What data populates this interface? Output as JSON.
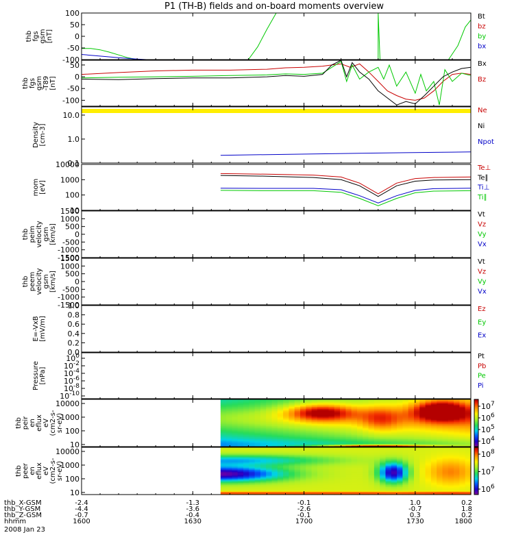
{
  "title": "P1 (TH-B) fields and on-board moments overview",
  "colors": {
    "black": "#000000",
    "red": "#c80000",
    "green": "#00c800",
    "blue": "#0000c8",
    "yellow": "#ffee00"
  },
  "chart_data": [
    {
      "type": "line",
      "ylabel": [
        "thb",
        "fgs",
        "gsm",
        "[nT]"
      ],
      "ylim": [
        -100,
        100
      ],
      "yticks": [
        "100",
        "50",
        "0",
        "-50",
        "-100"
      ],
      "legend": [
        {
          "label": "Bt",
          "color": "black"
        },
        {
          "label": "bz",
          "color": "red"
        },
        {
          "label": "by",
          "color": "green"
        },
        {
          "label": "bx",
          "color": "blue"
        }
      ],
      "series": [
        {
          "color": "green",
          "points": [
            [
              0,
              -52
            ],
            [
              5,
              -52
            ],
            [
              10,
              -58
            ],
            [
              15,
              -68
            ],
            [
              20,
              -80
            ],
            [
              25,
              -92
            ],
            [
              30,
              -100
            ]
          ]
        },
        {
          "color": "green",
          "points": [
            [
              90,
              -100
            ],
            [
              95,
              -45
            ],
            [
              100,
              30
            ],
            [
              105,
              100
            ]
          ]
        },
        {
          "color": "green",
          "points": [
            [
              160,
              -100
            ],
            [
              160,
              100
            ],
            [
              161,
              -100
            ]
          ]
        },
        {
          "color": "green",
          "points": [
            [
              198,
              -100
            ],
            [
              203,
              -40
            ],
            [
              207,
              40
            ],
            [
              210,
              70
            ]
          ]
        },
        {
          "color": "blue",
          "points": [
            [
              0,
              -78
            ],
            [
              10,
              -85
            ],
            [
              20,
              -92
            ],
            [
              30,
              -98
            ],
            [
              35,
              -100
            ]
          ]
        }
      ]
    },
    {
      "type": "line",
      "ylabel": [
        "thb",
        "fgs",
        "gsm",
        "-T89",
        "[nT]"
      ],
      "ylim": [
        -125,
        70
      ],
      "yticks": [
        "50",
        "0",
        "-50",
        "-100"
      ],
      "legend": [
        {
          "label": "Bx",
          "color": "black"
        },
        {
          "label": "Bz",
          "color": "red"
        }
      ],
      "band": {
        "color": "yellow"
      },
      "series": [
        {
          "color": "red",
          "points": [
            [
              0,
              10
            ],
            [
              20,
              18
            ],
            [
              40,
              25
            ],
            [
              60,
              28
            ],
            [
              80,
              28
            ],
            [
              100,
              32
            ],
            [
              110,
              38
            ],
            [
              120,
              40
            ],
            [
              130,
              45
            ],
            [
              135,
              50
            ],
            [
              140,
              55
            ],
            [
              145,
              40
            ],
            [
              150,
              55
            ],
            [
              155,
              20
            ],
            [
              160,
              -20
            ],
            [
              165,
              -60
            ],
            [
              170,
              -80
            ],
            [
              175,
              -95
            ],
            [
              180,
              -100
            ],
            [
              185,
              -90
            ],
            [
              190,
              -60
            ],
            [
              195,
              -20
            ],
            [
              200,
              10
            ],
            [
              205,
              15
            ],
            [
              210,
              10
            ]
          ]
        },
        {
          "color": "green",
          "points": [
            [
              0,
              -5
            ],
            [
              20,
              -2
            ],
            [
              40,
              0
            ],
            [
              60,
              2
            ],
            [
              80,
              5
            ],
            [
              100,
              8
            ],
            [
              110,
              12
            ],
            [
              120,
              10
            ],
            [
              130,
              15
            ],
            [
              135,
              40
            ],
            [
              140,
              65
            ],
            [
              143,
              -20
            ],
            [
              146,
              50
            ],
            [
              150,
              -10
            ],
            [
              155,
              20
            ],
            [
              160,
              40
            ],
            [
              163,
              -10
            ],
            [
              166,
              50
            ],
            [
              170,
              -40
            ],
            [
              175,
              20
            ],
            [
              180,
              -70
            ],
            [
              183,
              10
            ],
            [
              186,
              -60
            ],
            [
              190,
              -20
            ],
            [
              193,
              -120
            ],
            [
              196,
              30
            ],
            [
              200,
              -20
            ],
            [
              205,
              15
            ],
            [
              210,
              5
            ]
          ]
        },
        {
          "color": "black",
          "points": [
            [
              0,
              -10
            ],
            [
              20,
              -12
            ],
            [
              40,
              -8
            ],
            [
              60,
              -5
            ],
            [
              80,
              -5
            ],
            [
              100,
              0
            ],
            [
              110,
              5
            ],
            [
              120,
              2
            ],
            [
              130,
              10
            ],
            [
              135,
              50
            ],
            [
              140,
              70
            ],
            [
              143,
              0
            ],
            [
              146,
              60
            ],
            [
              150,
              20
            ],
            [
              155,
              -10
            ],
            [
              160,
              -60
            ],
            [
              165,
              -90
            ],
            [
              170,
              -120
            ],
            [
              175,
              -105
            ],
            [
              180,
              -115
            ],
            [
              185,
              -80
            ],
            [
              190,
              -40
            ],
            [
              195,
              0
            ],
            [
              200,
              20
            ],
            [
              205,
              35
            ],
            [
              210,
              40
            ]
          ]
        }
      ]
    },
    {
      "type": "line",
      "ylabel": [
        "Density",
        "[cm-3]"
      ],
      "yscale": "log",
      "ylim": [
        0.1,
        10
      ],
      "yticks": [
        "10.0",
        "1.0",
        "0.1"
      ],
      "legend": [
        {
          "label": "Ne",
          "color": "red"
        },
        {
          "label": "Ni",
          "color": "black"
        },
        {
          "label": "Npot",
          "color": "blue"
        }
      ],
      "series": [
        {
          "color": "blue",
          "points": [
            [
              75,
              0.21
            ],
            [
              100,
              0.225
            ],
            [
              125,
              0.24
            ],
            [
              150,
              0.255
            ],
            [
              175,
              0.27
            ],
            [
              200,
              0.285
            ],
            [
              210,
              0.29
            ]
          ]
        }
      ]
    },
    {
      "type": "line",
      "ylabel": [
        "mom",
        "[eV]"
      ],
      "yscale": "log",
      "ylim": [
        10,
        10000
      ],
      "yticks": [
        "10000",
        "1000",
        "100",
        "10"
      ],
      "legend": [
        {
          "label": "Te⊥",
          "color": "red"
        },
        {
          "label": "Te∥",
          "color": "black"
        },
        {
          "label": "Ti⊥",
          "color": "blue"
        },
        {
          "label": "Ti∥",
          "color": "green"
        }
      ],
      "series": [
        {
          "color": "red",
          "points": [
            [
              75,
              2500
            ],
            [
              100,
              2300
            ],
            [
              125,
              2000
            ],
            [
              140,
              1500
            ],
            [
              150,
              600
            ],
            [
              160,
              120
            ],
            [
              170,
              600
            ],
            [
              180,
              1200
            ],
            [
              190,
              1400
            ],
            [
              210,
              1500
            ]
          ]
        },
        {
          "color": "black",
          "points": [
            [
              75,
              1900
            ],
            [
              100,
              1700
            ],
            [
              125,
              1400
            ],
            [
              140,
              1000
            ],
            [
              150,
              400
            ],
            [
              160,
              80
            ],
            [
              170,
              400
            ],
            [
              180,
              800
            ],
            [
              190,
              950
            ],
            [
              210,
              1000
            ]
          ]
        },
        {
          "color": "blue",
          "points": [
            [
              75,
              280
            ],
            [
              100,
              270
            ],
            [
              125,
              270
            ],
            [
              140,
              220
            ],
            [
              150,
              90
            ],
            [
              160,
              30
            ],
            [
              170,
              90
            ],
            [
              180,
              200
            ],
            [
              190,
              260
            ],
            [
              210,
              280
            ]
          ]
        },
        {
          "color": "green",
          "points": [
            [
              75,
              200
            ],
            [
              100,
              190
            ],
            [
              125,
              190
            ],
            [
              140,
              150
            ],
            [
              150,
              60
            ],
            [
              160,
              20
            ],
            [
              170,
              60
            ],
            [
              180,
              140
            ],
            [
              190,
              180
            ],
            [
              210,
              190
            ]
          ]
        }
      ]
    },
    {
      "type": "line",
      "ylabel": [
        "thb",
        "peim",
        "velocity",
        "gsm",
        "[km/s]"
      ],
      "ylim": [
        -1500,
        1500
      ],
      "yticks": [
        "1500",
        "1000",
        "500",
        "0",
        "-500",
        "-1000",
        "-1500"
      ],
      "legend": [
        {
          "label": "Vt",
          "color": "black"
        },
        {
          "label": "Vz",
          "color": "red"
        },
        {
          "label": "Vy",
          "color": "green"
        },
        {
          "label": "Vx",
          "color": "blue"
        }
      ],
      "series": []
    },
    {
      "type": "line",
      "ylabel": [
        "thb",
        "peem",
        "velocity",
        "gsm",
        "[km/s]"
      ],
      "ylim": [
        -1500,
        1500
      ],
      "yticks": [
        "1500",
        "1000",
        "500",
        "0",
        "-500",
        "-1000",
        "-1500"
      ],
      "legend": [
        {
          "label": "Vt",
          "color": "black"
        },
        {
          "label": "Vz",
          "color": "red"
        },
        {
          "label": "Vy",
          "color": "green"
        },
        {
          "label": "Vx",
          "color": "blue"
        }
      ],
      "series": []
    },
    {
      "type": "line",
      "ylabel": [
        "E=-VxB",
        "[mV/m]"
      ],
      "ylim": [
        0,
        1
      ],
      "yticks": [
        "1.0",
        "0.8",
        "0.6",
        "0.4",
        "0.2",
        "0.0"
      ],
      "legend": [
        {
          "label": "Ez",
          "color": "red"
        },
        {
          "label": "Ey",
          "color": "green"
        },
        {
          "label": "Ex",
          "color": "blue"
        }
      ],
      "series": []
    },
    {
      "type": "line",
      "ylabel": [
        "Pressure",
        "[nPa]"
      ],
      "yscale": "log",
      "yticks": [
        "10^0",
        "10^-2",
        "10^-4",
        "10^-6",
        "10^-8",
        "10^-10"
      ],
      "legend": [
        {
          "label": "Pt",
          "color": "black"
        },
        {
          "label": "Pb",
          "color": "red"
        },
        {
          "label": "Pe",
          "color": "green"
        },
        {
          "label": "Pi",
          "color": "blue"
        }
      ],
      "series": []
    },
    {
      "type": "heatmap",
      "ylabel": [
        "thb",
        "peir",
        "en",
        "eflux",
        "eV",
        "(cm2-s-",
        "sr-eV)"
      ],
      "yscale": "log",
      "ylim": [
        7,
        20000
      ],
      "yticks": [
        "10000",
        "1000",
        "100",
        "10"
      ],
      "colorbar": {
        "ticks": [
          "10^7",
          "10^6",
          "10^5",
          "10^4"
        ]
      },
      "x_start": 75
    },
    {
      "type": "heatmap",
      "ylabel": [
        "thb",
        "peer",
        "en",
        "eflux",
        "eV",
        "(cm2-s-",
        "sr-eV)"
      ],
      "yscale": "log",
      "ylim": [
        7,
        20000
      ],
      "yticks": [
        "10000",
        "1000",
        "100",
        "10"
      ],
      "colorbar": {
        "ticks": [
          "10^8",
          "10^7",
          "10^6"
        ]
      },
      "x_start": 75
    }
  ],
  "x_axis": {
    "xlim": [
      0,
      210
    ],
    "tick_positions": [
      0,
      60,
      120,
      180
    ],
    "minor_count": 7,
    "rows": [
      {
        "label": "thb_X-GSM",
        "values": [
          "-2.4",
          "-1.3",
          "-0.1",
          "1.0",
          "0.2"
        ]
      },
      {
        "label": "thb_Y-GSM",
        "values": [
          "-4.4",
          "-3.6",
          "-2.6",
          "-0.7",
          "1.8"
        ]
      },
      {
        "label": "thb_Z-GSM",
        "values": [
          "-0.7",
          "-0.4",
          "-0.1",
          "0.3",
          "0.2"
        ]
      },
      {
        "label": "hhmm",
        "values": [
          "1600",
          "1630",
          "1700",
          "1730",
          "1800"
        ]
      }
    ],
    "date": "2008 Jan 23"
  }
}
